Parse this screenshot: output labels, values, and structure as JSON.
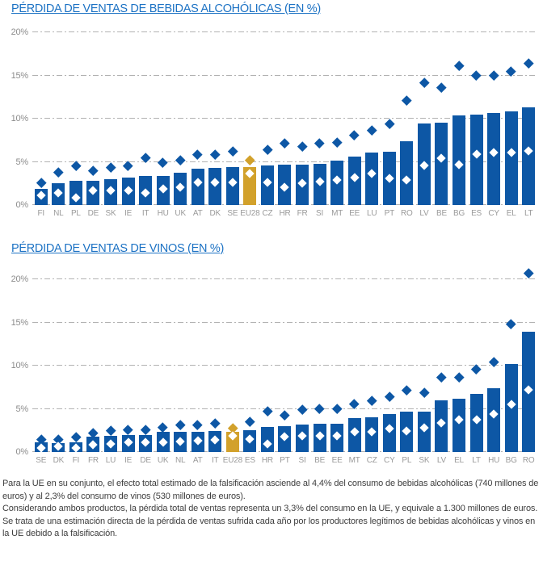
{
  "colors": {
    "bar": "#0d57a5",
    "highlight": "#d2a12b",
    "grid": "#b2b2b2",
    "tick_text": "#8c8c8c",
    "label_text": "#9a9a9a",
    "title": "#1c72c4",
    "footer_text": "#3f3f3f",
    "lo_diamond": "#ffffff"
  },
  "chart_data": [
    {
      "type": "bar",
      "title": "PÉRDIDA DE VENTAS DE BEBIDAS ALCOHÓLICAS (EN %)",
      "xlabel": "",
      "ylabel": "",
      "ylim": [
        0,
        20
      ],
      "ytick_values": [
        0,
        5,
        10,
        15,
        20
      ],
      "ytick_labels": [
        "0%",
        "5%",
        "10%",
        "15%",
        "20%"
      ],
      "grid": true,
      "legend_position": "none",
      "highlight_category": "EU28",
      "categories": [
        "FI",
        "NL",
        "PL",
        "DE",
        "SK",
        "IE",
        "IT",
        "HU",
        "UK",
        "AT",
        "DK",
        "SE",
        "EU28",
        "CZ",
        "HR",
        "FR",
        "SI",
        "MT",
        "EE",
        "LU",
        "PT",
        "RO",
        "LV",
        "BE",
        "BG",
        "ES",
        "CY",
        "EL",
        "LT"
      ],
      "series": [
        {
          "name": "pérdida estimada (barra)",
          "values": [
            1.9,
            2.5,
            2.8,
            2.8,
            3.0,
            3.2,
            3.4,
            3.4,
            3.7,
            4.2,
            4.3,
            4.4,
            4.4,
            4.6,
            4.7,
            4.7,
            4.8,
            5.1,
            5.6,
            6.1,
            6.2,
            7.4,
            9.4,
            9.5,
            10.4,
            10.5,
            10.7,
            10.8,
            11.3
          ]
        },
        {
          "name": "límite superior (rombo azul)",
          "values": [
            2.6,
            3.8,
            4.6,
            4.0,
            4.4,
            4.6,
            5.5,
            4.9,
            5.2,
            5.9,
            5.9,
            6.2,
            5.2,
            6.4,
            7.2,
            6.8,
            7.2,
            7.3,
            8.1,
            8.7,
            9.4,
            12.1,
            14.2,
            13.6,
            16.1,
            15.0,
            15.0,
            15.5,
            16.4
          ]
        },
        {
          "name": "límite inferior (rombo blanco)",
          "values": [
            1.1,
            1.4,
            0.8,
            1.7,
            1.7,
            1.7,
            1.4,
            1.9,
            2.1,
            2.6,
            2.6,
            2.6,
            3.6,
            2.6,
            2.1,
            2.5,
            2.7,
            2.9,
            3.2,
            3.6,
            3.1,
            2.9,
            4.6,
            5.4,
            4.7,
            5.9,
            6.1,
            6.1,
            6.3
          ]
        }
      ]
    },
    {
      "type": "bar",
      "title": "PÉRDIDA DE VENTAS DE VINOS (EN %)",
      "xlabel": "",
      "ylabel": "",
      "ylim": [
        0,
        20
      ],
      "ytick_values": [
        0,
        5,
        10,
        15,
        20
      ],
      "ytick_labels": [
        "0%",
        "5%",
        "10%",
        "15%",
        "20%"
      ],
      "grid": true,
      "legend_position": "none",
      "highlight_category": "EU28",
      "categories": [
        "SE",
        "DK",
        "FI",
        "FR",
        "LU",
        "IE",
        "DE",
        "UK",
        "NL",
        "AT",
        "IT",
        "EU28",
        "ES",
        "HR",
        "PT",
        "SI",
        "BE",
        "EE",
        "MT",
        "CZ",
        "CY",
        "PL",
        "SK",
        "LV",
        "EL",
        "LT",
        "HU",
        "BG",
        "RO"
      ],
      "series": [
        {
          "name": "pérdida estimada (barra)",
          "values": [
            1.1,
            1.0,
            1.1,
            1.8,
            1.9,
            2.0,
            2.0,
            2.3,
            2.3,
            2.3,
            2.4,
            2.3,
            2.5,
            2.9,
            3.0,
            3.2,
            3.3,
            3.3,
            3.9,
            4.0,
            4.4,
            4.7,
            4.7,
            6.0,
            6.2,
            6.7,
            7.4,
            10.2,
            13.9
          ]
        },
        {
          "name": "límite superior (rombo azul)",
          "values": [
            1.5,
            1.5,
            1.8,
            2.2,
            2.5,
            2.6,
            2.6,
            2.9,
            3.2,
            3.2,
            3.3,
            2.8,
            3.5,
            4.7,
            4.3,
            4.9,
            5.0,
            5.0,
            5.6,
            6.0,
            6.4,
            7.2,
            6.9,
            8.7,
            8.7,
            9.6,
            10.4,
            14.8,
            20.7
          ]
        },
        {
          "name": "límite inferior (rombo blanco)",
          "values": [
            0.5,
            0.7,
            0.5,
            0.8,
            0.9,
            1.1,
            1.1,
            1.1,
            1.2,
            1.3,
            1.4,
            1.9,
            1.5,
            0.9,
            1.8,
            1.9,
            1.9,
            1.9,
            2.3,
            2.3,
            2.7,
            2.4,
            2.8,
            3.4,
            3.7,
            3.7,
            4.4,
            5.5,
            7.2
          ]
        }
      ]
    }
  ],
  "footer": {
    "paragraphs": [
      "Para la UE en su conjunto, el efecto total estimado de la falsificación asciende al 4,4% del consumo de bebidas alcohólicas (740 millones de euros) y al 2,3% del consumo de vinos (530 millones de euros).",
      "Considerando ambos productos, la pérdida total de ventas representa un 3,3% del consumo en la UE, y equivale a 1.300 millones de euros.",
      "Se trata de una estimación directa de la pérdida de ventas sufrida cada año por los productores legítimos de bebidas alcohólicas y vinos en la UE debido a la falsificación."
    ]
  }
}
